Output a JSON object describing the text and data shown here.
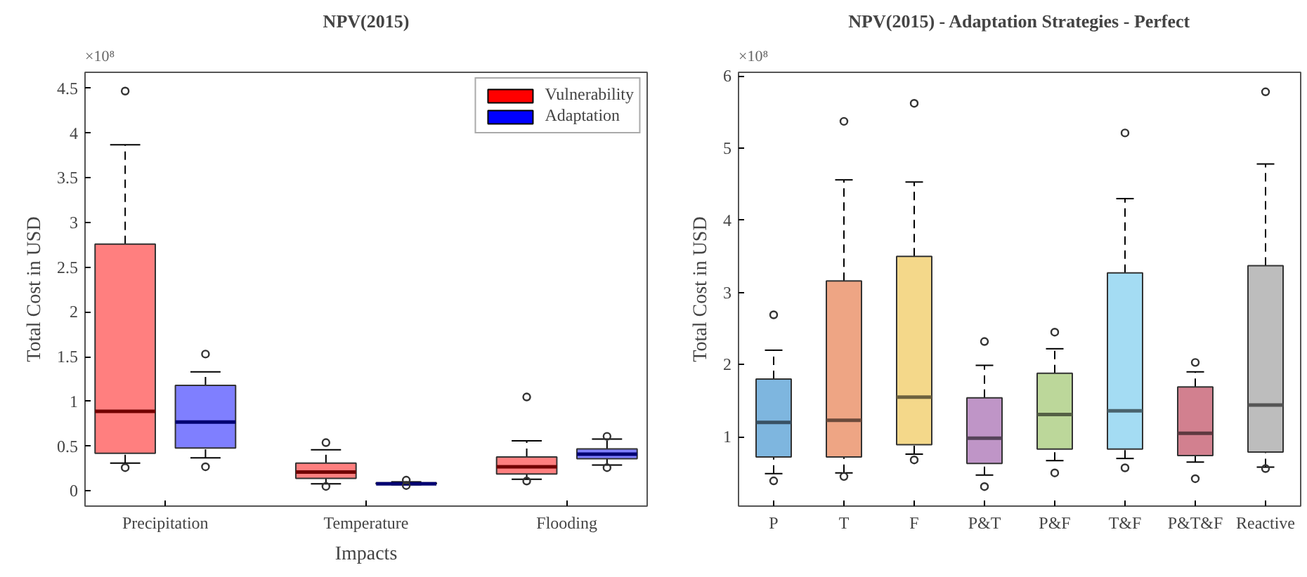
{
  "chart_data": [
    {
      "type": "box",
      "title": "NPV(2015)",
      "xlabel": "Impacts",
      "ylabel": "Total Cost in USD",
      "annotations": [
        "×10⁸"
      ],
      "categories": [
        "Precipitation",
        "Temperature",
        "Flooding"
      ],
      "ylim": [
        -0.17,
        4.68
      ],
      "yticks": [
        0,
        0.5,
        1,
        1.5,
        2,
        2.5,
        3,
        3.5,
        4,
        4.5
      ],
      "grid": false,
      "legend": "top right",
      "series": [
        {
          "name": "Vulnerability",
          "color": "#ff0000",
          "boxes": [
            {
              "low": 0.31,
              "q1": 0.42,
              "median": 0.89,
              "q3": 2.76,
              "high": 3.87,
              "outliers": [
                4.47,
                0.26
              ]
            },
            {
              "low": 0.08,
              "q1": 0.14,
              "median": 0.21,
              "q3": 0.31,
              "high": 0.46,
              "outliers": [
                0.54,
                0.05
              ]
            },
            {
              "low": 0.13,
              "q1": 0.19,
              "median": 0.27,
              "q3": 0.38,
              "high": 0.56,
              "outliers": [
                1.05,
                0.11
              ]
            }
          ]
        },
        {
          "name": "Adaptation",
          "color": "#0000ff",
          "boxes": [
            {
              "low": 0.37,
              "q1": 0.48,
              "median": 0.77,
              "q3": 1.18,
              "high": 1.33,
              "outliers": [
                1.53,
                0.27
              ]
            },
            {
              "low": 0.07,
              "q1": 0.08,
              "median": 0.08,
              "q3": 0.09,
              "high": 0.1,
              "outliers": [
                0.12,
                0.06
              ]
            },
            {
              "low": 0.29,
              "q1": 0.36,
              "median": 0.41,
              "q3": 0.47,
              "high": 0.58,
              "outliers": [
                0.61,
                0.26
              ]
            }
          ]
        }
      ]
    },
    {
      "type": "box",
      "title": "NPV(2015) - Adaptation Strategies - Perfect",
      "ylabel": "Total Cost in USD",
      "annotations": [
        "×10⁸"
      ],
      "categories": [
        "P",
        "T",
        "F",
        "P&T",
        "P&F",
        "T&F",
        "P&T&F",
        "Reactive"
      ],
      "ylim": [
        0.04,
        6.05
      ],
      "yticks": [
        1,
        2,
        3,
        4,
        5,
        6
      ],
      "grid": false,
      "colors": [
        "#7eb6df",
        "#eea584",
        "#f4d88a",
        "#bf95c7",
        "#bcd79a",
        "#a4dcf3",
        "#d2808f",
        "#bdbdbd"
      ],
      "boxes": [
        {
          "low": 0.49,
          "q1": 0.72,
          "median": 1.2,
          "q3": 1.8,
          "high": 2.2,
          "outliers": [
            2.69,
            0.39
          ]
        },
        {
          "low": 0.5,
          "q1": 0.72,
          "median": 1.23,
          "q3": 3.16,
          "high": 4.56,
          "outliers": [
            5.37,
            0.45
          ]
        },
        {
          "low": 0.76,
          "q1": 0.89,
          "median": 1.55,
          "q3": 3.5,
          "high": 4.53,
          "outliers": [
            5.62,
            0.68
          ]
        },
        {
          "low": 0.47,
          "q1": 0.63,
          "median": 0.98,
          "q3": 1.54,
          "high": 1.99,
          "outliers": [
            2.32,
            0.31
          ]
        },
        {
          "low": 0.67,
          "q1": 0.83,
          "median": 1.31,
          "q3": 1.88,
          "high": 2.22,
          "outliers": [
            2.45,
            0.5
          ]
        },
        {
          "low": 0.7,
          "q1": 0.83,
          "median": 1.36,
          "q3": 3.27,
          "high": 4.3,
          "outliers": [
            5.21,
            0.57
          ]
        },
        {
          "low": 0.65,
          "q1": 0.74,
          "median": 1.05,
          "q3": 1.69,
          "high": 1.9,
          "outliers": [
            2.03,
            0.42
          ]
        },
        {
          "low": 0.58,
          "q1": 0.79,
          "median": 1.44,
          "q3": 3.37,
          "high": 4.78,
          "outliers": [
            5.78,
            0.56
          ]
        }
      ]
    }
  ]
}
